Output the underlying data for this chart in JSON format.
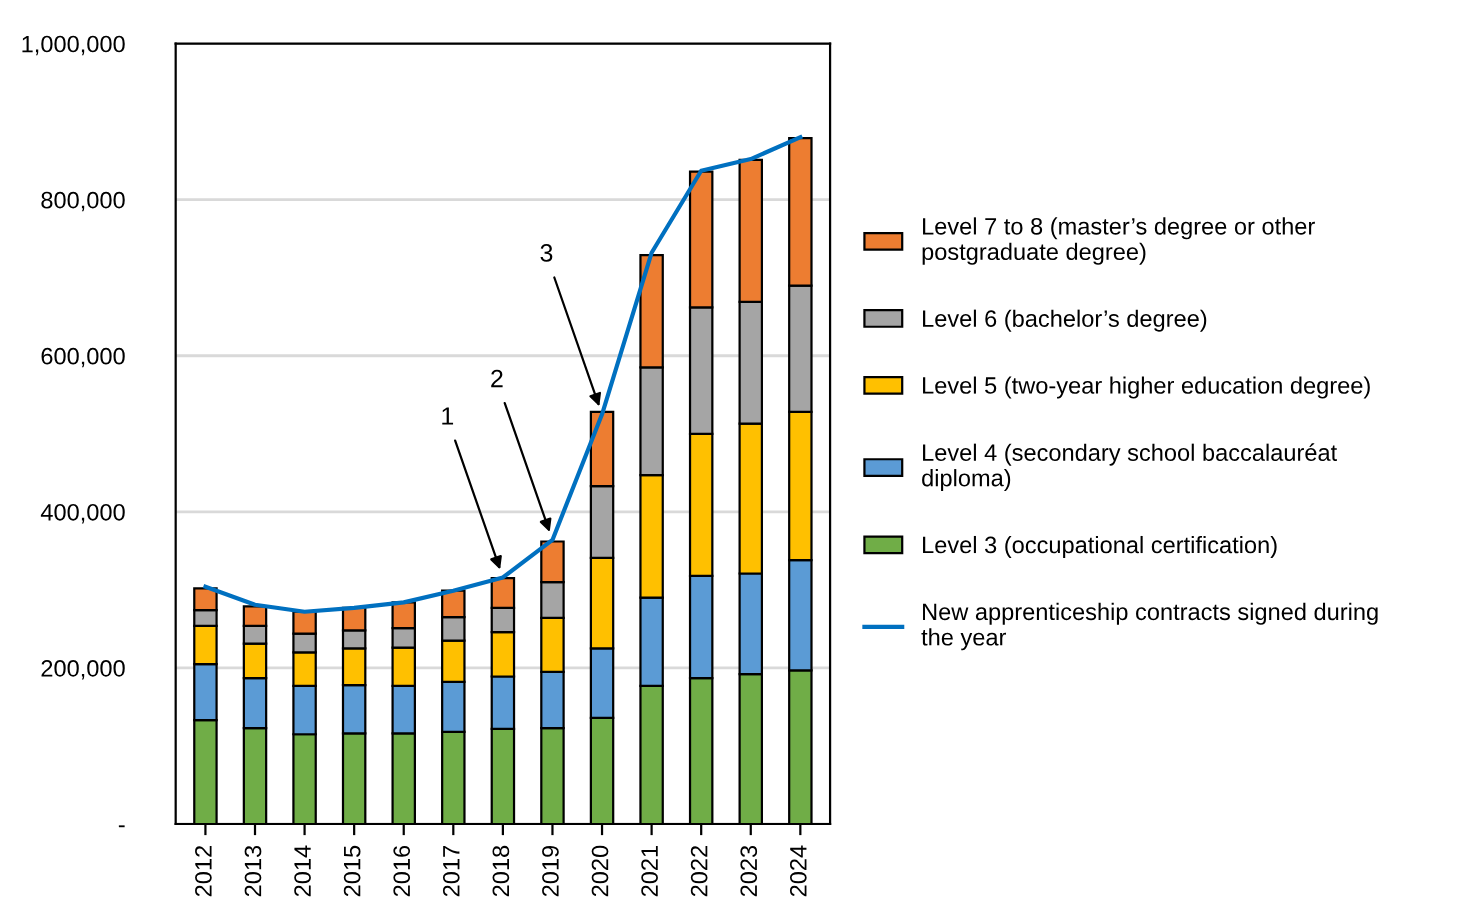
{
  "chart_data": {
    "type": "bar",
    "stacked": true,
    "categories": [
      "2012",
      "2013",
      "2014",
      "2015",
      "2016",
      "2017",
      "2018",
      "2019",
      "2020",
      "2021",
      "2022",
      "2023",
      "2024"
    ],
    "series": [
      {
        "name": "Level 3 (occupational certification)",
        "color": "#70ad47",
        "values": [
          133000,
          123000,
          115000,
          116000,
          116000,
          118000,
          122000,
          123000,
          136000,
          177000,
          187000,
          192000,
          197000
        ]
      },
      {
        "name": "Level 4 (secondary school baccalauréat\ndiploma)",
        "color": "#5b9bd5",
        "values": [
          72000,
          64000,
          62000,
          62000,
          61000,
          64000,
          67000,
          72000,
          89000,
          113000,
          131000,
          129000,
          141000
        ]
      },
      {
        "name": "Level 5 (two-year higher education degree)",
        "color": "#ffc000",
        "values": [
          49000,
          44000,
          43000,
          47000,
          49000,
          53000,
          57000,
          69000,
          116000,
          157000,
          182000,
          192000,
          190000
        ]
      },
      {
        "name": "Level 6 (bachelor’s degree)",
        "color": "#a5a5a5",
        "values": [
          20000,
          23000,
          24000,
          23000,
          25000,
          30000,
          31000,
          46000,
          92000,
          138000,
          162000,
          156000,
          162000
        ]
      },
      {
        "name": "Level 7 to 8 (master’s degree or other\npostgraduate degree)",
        "color": "#ed7d31",
        "values": [
          28000,
          25000,
          28000,
          29000,
          33000,
          34000,
          38000,
          52000,
          95000,
          144000,
          174000,
          182000,
          189000
        ]
      },
      {
        "name": "New apprenticeship contracts signed during\nthe year",
        "type": "line",
        "color": "#0070c0",
        "values": [
          304000,
          281000,
          272000,
          277000,
          284000,
          299000,
          316000,
          364000,
          525000,
          732000,
          837000,
          852000,
          880000
        ]
      }
    ],
    "ylim": [
      0,
      1000000
    ],
    "yticks": [
      {
        "value": 0,
        "label": "-"
      },
      {
        "value": 200000,
        "label": "200,000"
      },
      {
        "value": 400000,
        "label": "400,000"
      },
      {
        "value": 600000,
        "label": "600,000"
      },
      {
        "value": 800000,
        "label": "800,000"
      },
      {
        "value": 1000000,
        "label": "1,000,000"
      }
    ],
    "grid": "y",
    "legend": "right",
    "annotations": [
      {
        "text": "1",
        "x": "2018",
        "y": 316000
      },
      {
        "text": "2",
        "x": "2019",
        "y": 364000
      },
      {
        "text": "3",
        "x": "2020",
        "y": 525000
      }
    ]
  }
}
